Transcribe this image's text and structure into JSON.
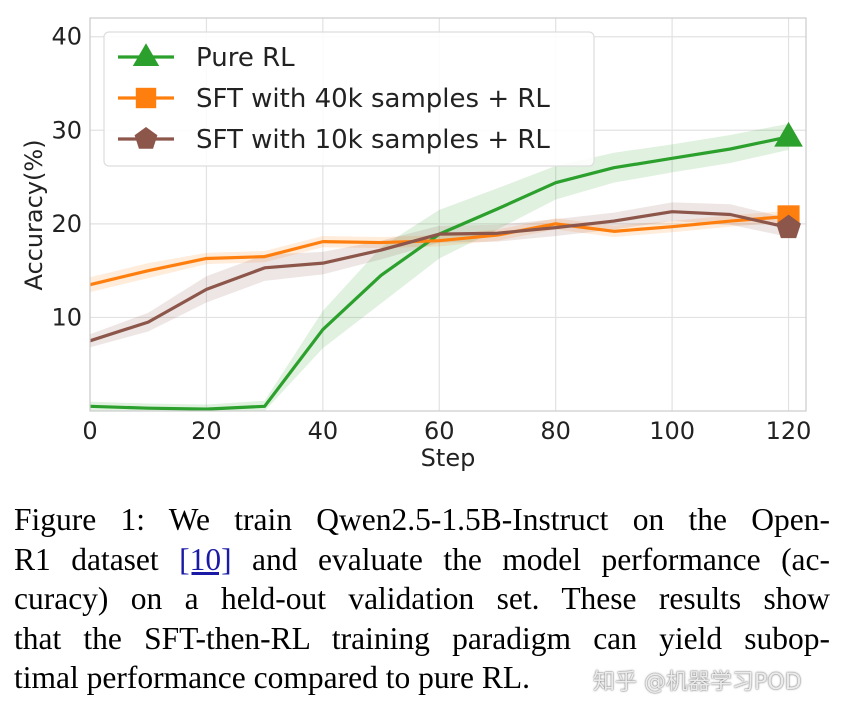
{
  "chart_data": {
    "type": "line",
    "xlabel": "Step",
    "ylabel": "Accuracy(%)",
    "xlim": [
      0,
      123
    ],
    "ylim": [
      0,
      42
    ],
    "xticks": [
      0,
      20,
      40,
      60,
      80,
      100,
      120
    ],
    "yticks": [
      10,
      20,
      30,
      40
    ],
    "grid": true,
    "legend_position": "top-left",
    "series": [
      {
        "name": "Pure RL",
        "color": "#2ca02c",
        "marker": "triangle",
        "x": [
          0,
          10,
          20,
          30,
          40,
          50,
          60,
          70,
          80,
          90,
          100,
          110,
          120
        ],
        "values": [
          0.5,
          0.3,
          0.2,
          0.5,
          8.7,
          14.5,
          18.9,
          21.6,
          24.4,
          26.0,
          27.0,
          28.0,
          29.3
        ],
        "band": [
          0.5,
          0.5,
          0.5,
          0.6,
          2.0,
          3.0,
          2.6,
          2.2,
          1.8,
          1.6,
          1.5,
          1.5,
          1.4
        ]
      },
      {
        "name": "SFT with 40k samples + RL",
        "color": "#ff7f0e",
        "marker": "square",
        "x": [
          0,
          10,
          20,
          30,
          40,
          50,
          60,
          70,
          80,
          90,
          100,
          110,
          120
        ],
        "values": [
          13.5,
          15.0,
          16.3,
          16.5,
          18.1,
          18.0,
          18.2,
          18.8,
          20.0,
          19.2,
          19.7,
          20.3,
          20.8
        ],
        "band": [
          0.8,
          0.8,
          0.6,
          0.6,
          0.6,
          0.6,
          0.6,
          0.6,
          0.6,
          0.6,
          0.6,
          0.6,
          0.6
        ]
      },
      {
        "name": "SFT with 10k samples + RL",
        "color": "#8c564b",
        "marker": "pentagon",
        "x": [
          0,
          10,
          20,
          30,
          40,
          50,
          60,
          70,
          80,
          90,
          100,
          110,
          120
        ],
        "values": [
          7.5,
          9.5,
          13.0,
          15.3,
          15.8,
          17.2,
          18.9,
          19.0,
          19.6,
          20.3,
          21.3,
          21.0,
          19.6
        ],
        "band": [
          0.7,
          1.0,
          1.4,
          1.4,
          1.2,
          1.0,
          0.9,
          0.9,
          0.9,
          0.9,
          1.0,
          1.1,
          1.0
        ]
      }
    ]
  },
  "caption": {
    "line1": "Figure 1: We train Qwen2.5-1.5B-Instruct on the Open-",
    "line2_a": "R1 dataset ",
    "line2_ref": "[10]",
    "line2_b": " and evaluate the model performance (ac-",
    "line3": "curacy) on a held-out validation set. These results show",
    "line4": "that the SFT-then-RL training paradigm can yield subop-",
    "line5": "timal performance compared to pure RL."
  },
  "watermark": "知乎 @机器学习POD"
}
